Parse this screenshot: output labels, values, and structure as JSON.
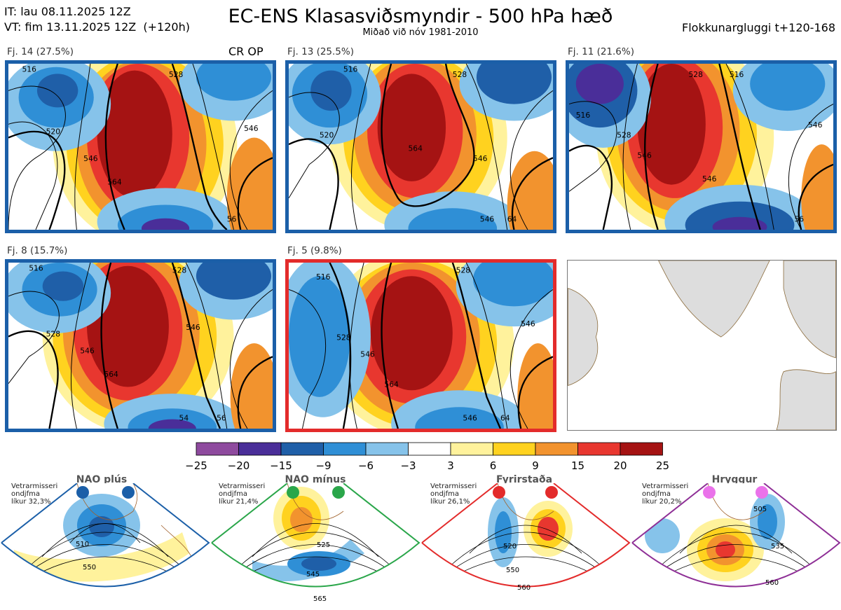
{
  "header": {
    "it": "IT: lau 08.11.2025 12Z",
    "vt": "VT: fim 13.11.2025 12Z  (+120h)",
    "title": "EC-ENS Klasasviðsmyndir - 500 hPa hæð",
    "subtitle": "Miðað við nóv 1981-2010",
    "window": "Flokkunargluggi t+120-168"
  },
  "panels": [
    {
      "label": "Fj. 14 (27.5%)",
      "tag": "CR OP",
      "contours": [
        "516",
        "528",
        "520",
        "546",
        "564",
        "546",
        "56"
      ]
    },
    {
      "label": "Fj. 13 (25.5%)",
      "tag": "",
      "contours": [
        "528",
        "516",
        "520",
        "564",
        "546",
        "546",
        "64"
      ]
    },
    {
      "label": "Fj. 11 (21.6%)",
      "tag": "",
      "contours": [
        "516",
        "528",
        "516",
        "528",
        "546",
        "546",
        "546",
        "56"
      ]
    },
    {
      "label": "Fj. 8 (15.7%)",
      "tag": "",
      "contours": [
        "516",
        "528",
        "528",
        "546",
        "564",
        "546",
        "54",
        "56"
      ]
    },
    {
      "label": "Fj. 5 (9.8%)",
      "tag": "",
      "contours": [
        "516",
        "528",
        "528",
        "546",
        "546",
        "564",
        "546",
        "64"
      ]
    }
  ],
  "colorbar": {
    "ticks": [
      "−25",
      "−20",
      "−15",
      "−9",
      "−6",
      "−3",
      "3",
      "6",
      "9",
      "15",
      "20",
      "25"
    ],
    "colors": [
      "#8e4a9e",
      "#4a2e99",
      "#1f5fa8",
      "#2f8fd6",
      "#86c3ea",
      "#ffffff",
      "#fff29c",
      "#ffd21f",
      "#f2932e",
      "#e8372f",
      "#a51313"
    ]
  },
  "regimes": [
    {
      "title": "NAO plús",
      "note": "Vetrarmisseri\nondjfma\nlíkur 32,3%",
      "color": "#1b5fa8",
      "contours": [
        "510",
        "550"
      ]
    },
    {
      "title": "NAO mínus",
      "note": "Vetrarmisseri\nondjfma\nlíkur 21,4%",
      "color": "#2aa64a",
      "contours": [
        "525",
        "545",
        "565"
      ]
    },
    {
      "title": "Fyrirstaða",
      "note": "Vetrarmisseri\nondjfma\nlíkur 26,1%",
      "color": "#e32b2b",
      "contours": [
        "520",
        "550",
        "560"
      ]
    },
    {
      "title": "Hryggur",
      "note": "Vetrarmisseri\nondjfma\nlíkur 20,2%",
      "color": "#8e2f96",
      "contours": [
        "505",
        "535",
        "560"
      ]
    }
  ]
}
